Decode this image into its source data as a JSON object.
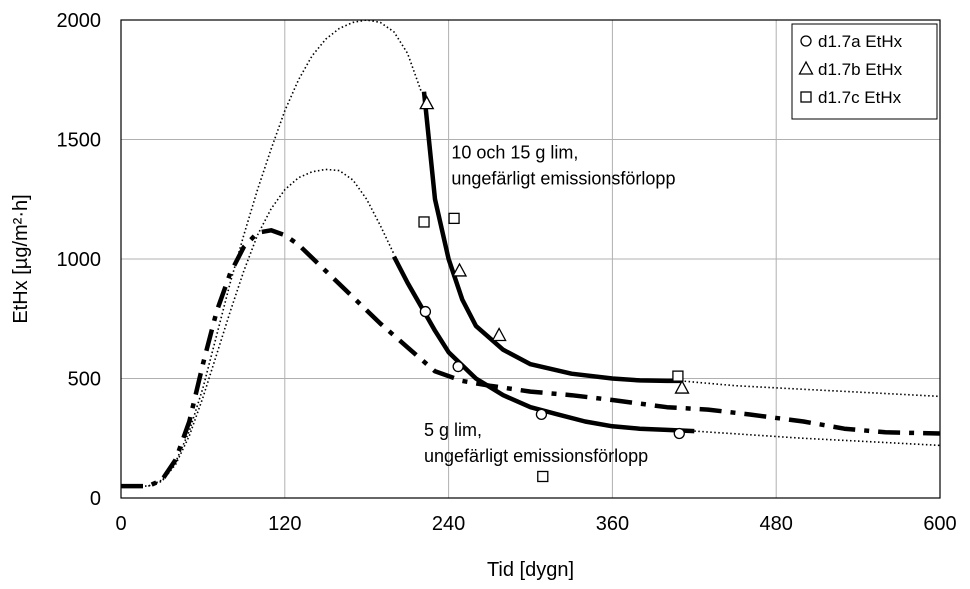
{
  "chart_data": {
    "type": "scatter",
    "xlabel": "Tid [dygn]",
    "ylabel": "EtHx [µg/m²·h]",
    "xlim": [
      0,
      600
    ],
    "ylim": [
      0,
      2000
    ],
    "x_ticks": [
      0,
      120,
      240,
      360,
      480,
      600
    ],
    "y_ticks": [
      0,
      500,
      1000,
      1500,
      2000
    ],
    "x_tick_labels": [
      "0",
      "120",
      "240",
      "360",
      "480",
      "600"
    ],
    "y_tick_labels": [
      "0",
      "500",
      "1000",
      "1500",
      "2000"
    ],
    "grid": true,
    "legend_position": "top-right",
    "series": [
      {
        "name": "d1.7a EtHx",
        "marker": "circle",
        "points": [
          [
            223,
            780
          ],
          [
            247,
            550
          ],
          [
            308,
            350
          ],
          [
            409,
            270
          ]
        ]
      },
      {
        "name": "d1.7b EtHx",
        "marker": "triangle",
        "points": [
          [
            224,
            1650
          ],
          [
            248,
            950
          ],
          [
            277,
            680
          ],
          [
            411,
            460
          ]
        ]
      },
      {
        "name": "d1.7c EtHx",
        "marker": "square",
        "points": [
          [
            222,
            1155
          ],
          [
            244,
            1170
          ],
          [
            309,
            90
          ],
          [
            408,
            510
          ]
        ]
      }
    ],
    "curves": [
      {
        "style": "dotted",
        "points": [
          [
            0,
            50
          ],
          [
            20,
            50
          ],
          [
            30,
            75
          ],
          [
            40,
            150
          ],
          [
            50,
            280
          ],
          [
            60,
            460
          ],
          [
            70,
            680
          ],
          [
            80,
            900
          ],
          [
            90,
            1100
          ],
          [
            100,
            1290
          ],
          [
            110,
            1460
          ],
          [
            120,
            1620
          ],
          [
            130,
            1750
          ],
          [
            140,
            1850
          ],
          [
            150,
            1920
          ],
          [
            160,
            1965
          ],
          [
            170,
            1990
          ],
          [
            180,
            2000
          ],
          [
            190,
            1990
          ],
          [
            200,
            1950
          ],
          [
            210,
            1860
          ],
          [
            220,
            1700
          ]
        ]
      },
      {
        "style": "solid",
        "points": [
          [
            222,
            1700
          ],
          [
            230,
            1250
          ],
          [
            240,
            1000
          ],
          [
            250,
            830
          ],
          [
            260,
            720
          ],
          [
            280,
            620
          ],
          [
            300,
            560
          ],
          [
            330,
            520
          ],
          [
            360,
            500
          ],
          [
            380,
            492
          ],
          [
            400,
            490
          ],
          [
            410,
            490
          ]
        ]
      },
      {
        "style": "dotted",
        "points": [
          [
            410,
            490
          ],
          [
            450,
            470
          ],
          [
            500,
            455
          ],
          [
            550,
            440
          ],
          [
            600,
            425
          ]
        ]
      },
      {
        "style": "dotted",
        "points": [
          [
            20,
            50
          ],
          [
            30,
            70
          ],
          [
            40,
            140
          ],
          [
            50,
            260
          ],
          [
            60,
            420
          ],
          [
            70,
            600
          ],
          [
            80,
            780
          ],
          [
            90,
            950
          ],
          [
            100,
            1100
          ],
          [
            110,
            1210
          ],
          [
            120,
            1290
          ],
          [
            130,
            1340
          ],
          [
            140,
            1365
          ],
          [
            150,
            1375
          ],
          [
            160,
            1370
          ],
          [
            170,
            1330
          ],
          [
            180,
            1250
          ],
          [
            190,
            1140
          ],
          [
            200,
            1020
          ]
        ]
      },
      {
        "style": "solid",
        "points": [
          [
            200,
            1010
          ],
          [
            210,
            900
          ],
          [
            220,
            800
          ],
          [
            230,
            700
          ],
          [
            240,
            610
          ],
          [
            260,
            500
          ],
          [
            280,
            430
          ],
          [
            300,
            380
          ],
          [
            320,
            350
          ],
          [
            340,
            320
          ],
          [
            360,
            300
          ],
          [
            380,
            290
          ],
          [
            400,
            285
          ],
          [
            420,
            280
          ]
        ]
      },
      {
        "style": "dotted",
        "points": [
          [
            420,
            280
          ],
          [
            460,
            265
          ],
          [
            500,
            250
          ],
          [
            550,
            235
          ],
          [
            600,
            220
          ]
        ]
      },
      {
        "style": "dashdot",
        "points": [
          [
            0,
            50
          ],
          [
            20,
            50
          ],
          [
            30,
            75
          ],
          [
            40,
            160
          ],
          [
            50,
            320
          ],
          [
            60,
            560
          ],
          [
            70,
            780
          ],
          [
            80,
            940
          ],
          [
            90,
            1050
          ],
          [
            100,
            1110
          ],
          [
            110,
            1120
          ],
          [
            120,
            1100
          ],
          [
            130,
            1060
          ],
          [
            150,
            950
          ],
          [
            170,
            840
          ],
          [
            190,
            730
          ],
          [
            210,
            630
          ],
          [
            230,
            530
          ],
          [
            250,
            490
          ],
          [
            270,
            470
          ],
          [
            300,
            445
          ],
          [
            330,
            430
          ],
          [
            360,
            410
          ],
          [
            400,
            380
          ],
          [
            430,
            370
          ],
          [
            460,
            350
          ],
          [
            500,
            320
          ],
          [
            530,
            290
          ],
          [
            560,
            275
          ],
          [
            600,
            270
          ]
        ]
      }
    ],
    "annotations": [
      {
        "line1": "10 och 15 g lim,",
        "line2": "ungefärligt emissionsförlopp",
        "anchor": [
          242,
          1420
        ]
      },
      {
        "line1": "5 g lim,",
        "line2": "ungefärligt emissionsförlopp",
        "anchor": [
          222,
          260
        ]
      }
    ]
  }
}
